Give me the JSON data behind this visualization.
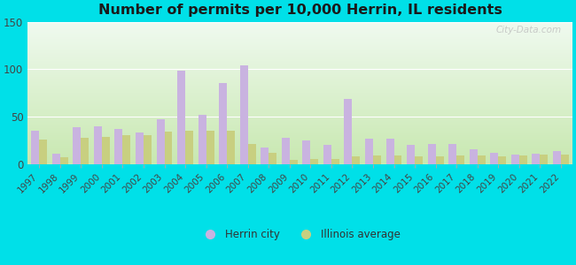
{
  "title": "Number of permits per 10,000 Herrin, IL residents",
  "years": [
    1997,
    1998,
    1999,
    2000,
    2001,
    2002,
    2003,
    2004,
    2005,
    2006,
    2007,
    2008,
    2009,
    2010,
    2011,
    2012,
    2013,
    2014,
    2015,
    2016,
    2017,
    2018,
    2019,
    2020,
    2021,
    2022
  ],
  "herrin": [
    35,
    11,
    39,
    40,
    37,
    33,
    47,
    98,
    52,
    85,
    104,
    18,
    28,
    25,
    20,
    69,
    27,
    27,
    20,
    21,
    21,
    16,
    12,
    10,
    11,
    14
  ],
  "illinois": [
    26,
    7,
    28,
    29,
    31,
    31,
    34,
    35,
    35,
    35,
    21,
    12,
    5,
    6,
    6,
    8,
    9,
    9,
    8,
    8,
    9,
    9,
    8,
    9,
    10,
    10
  ],
  "herrin_color": "#c9b3e0",
  "illinois_color": "#c8cf80",
  "background_outer": "#00e0e8",
  "grad_top": "#f0faf0",
  "grad_bottom": "#c8e8b0",
  "ylim": [
    0,
    150
  ],
  "yticks": [
    0,
    50,
    100,
    150
  ],
  "watermark": "City-Data.com",
  "legend_herrin": "Herrin city",
  "legend_illinois": "Illinois average",
  "bar_width": 0.38,
  "title_fontsize": 11.5,
  "tick_fontsize": 7.5,
  "ytick_fontsize": 8.5
}
